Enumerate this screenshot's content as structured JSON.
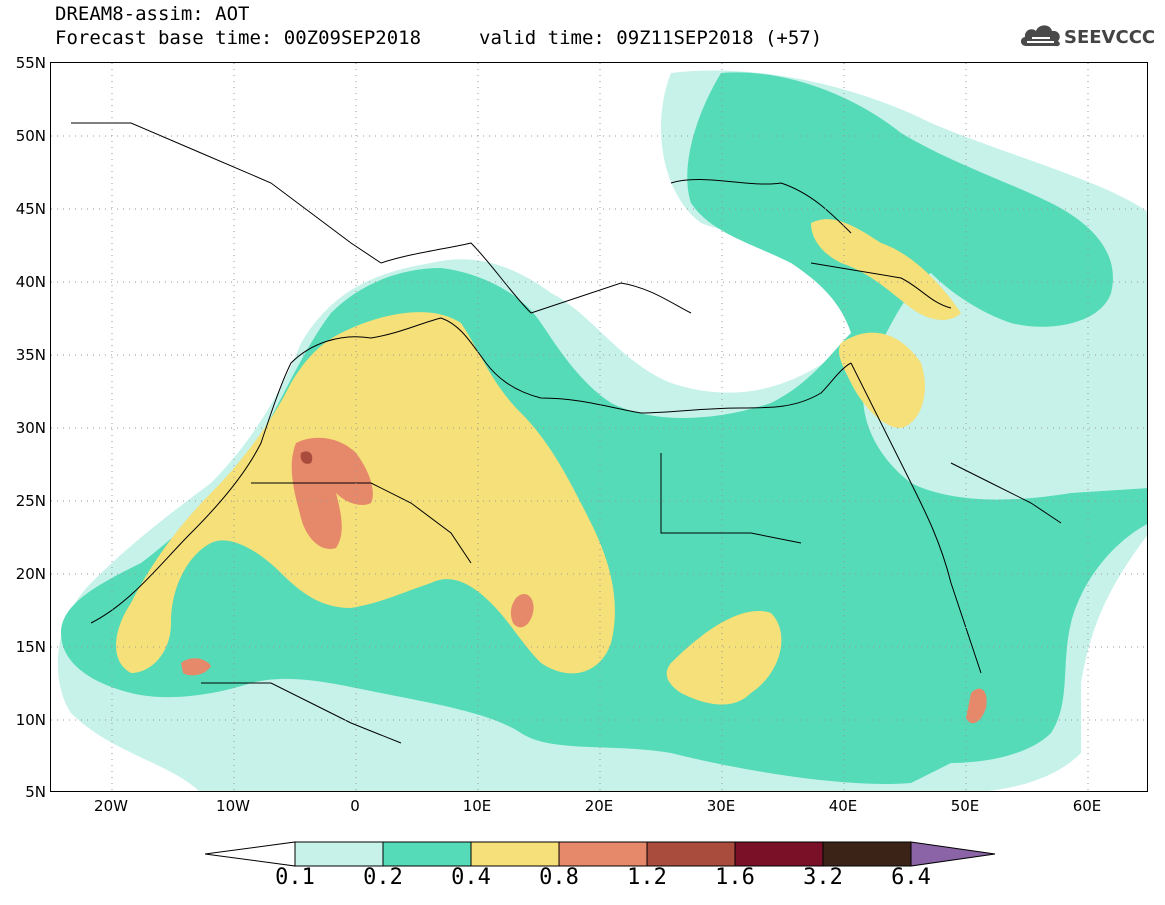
{
  "header": {
    "title": "DREAM8-assim: AOT",
    "base_time": "Forecast base time: 00Z09SEP2018",
    "valid_time": "valid time: 09Z11SEP2018 (+57)",
    "logo_text": "SEEVCCC"
  },
  "map": {
    "lat_labels": [
      "55N",
      "50N",
      "45N",
      "40N",
      "35N",
      "30N",
      "25N",
      "20N",
      "15N",
      "10N",
      "5N"
    ],
    "lon_labels": [
      "20W",
      "10W",
      "0",
      "10E",
      "20E",
      "30E",
      "40E",
      "50E",
      "60E"
    ],
    "lat_range": [
      5,
      55
    ],
    "lon_range": [
      -25,
      65
    ]
  },
  "legend": {
    "levels": [
      "0.1",
      "0.2",
      "0.4",
      "0.8",
      "1.2",
      "1.6",
      "3.2",
      "6.4"
    ],
    "colors": [
      "#c6f2ea",
      "#55dbb7",
      "#f5e07a",
      "#e6896a",
      "#a94c3e",
      "#7a1027",
      "#3b2417",
      "#8a64a6"
    ],
    "underflow_color": "#ffffff"
  }
}
